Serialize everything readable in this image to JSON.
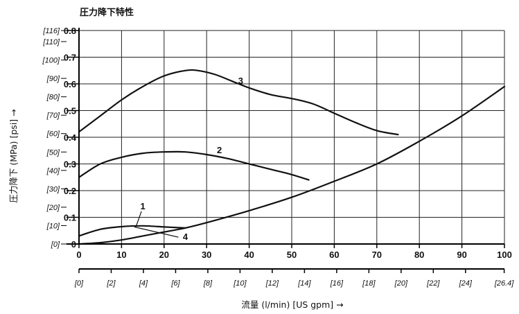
{
  "chart_data": {
    "type": "line",
    "title": "圧力降下特性",
    "xlabel": "流量 (l/min) [US gpm] →",
    "ylabel": "圧力降下 (MPa) [psi] →",
    "xlim": [
      0,
      100
    ],
    "ylim": [
      0,
      0.8
    ],
    "x_ticks": [
      "0",
      "10",
      "20",
      "30",
      "40",
      "50",
      "60",
      "70",
      "80",
      "90",
      "100"
    ],
    "y_ticks": [
      "0",
      "0.1",
      "0.2",
      "0.3",
      "0.4",
      "0.5",
      "0.6",
      "0.7",
      "0.8"
    ],
    "x2_ticks": [
      "[0]",
      "[2]",
      "[4]",
      "[6]",
      "[8]",
      "[10]",
      "[12]",
      "[14]",
      "[16]",
      "[18]",
      "[20]",
      "[22]",
      "[24]",
      "[26.4]"
    ],
    "y2_ticks": [
      "[0]",
      "[10]",
      "[20]",
      "[30]",
      "[40]",
      "[50]",
      "[60]",
      "[70]",
      "[80]",
      "[90]",
      "[100]",
      "[110]",
      "[116]"
    ],
    "grid": true,
    "series": [
      {
        "name": "1",
        "label_at": [
          15,
          0.13
        ],
        "x": [
          0,
          5,
          10,
          15,
          20,
          25
        ],
        "y": [
          0.03,
          0.055,
          0.065,
          0.068,
          0.064,
          0.06
        ]
      },
      {
        "name": "2",
        "label_at": [
          33,
          0.34
        ],
        "x": [
          0,
          5,
          10,
          15,
          20,
          25,
          30,
          35,
          40,
          45,
          50,
          54
        ],
        "y": [
          0.25,
          0.3,
          0.325,
          0.34,
          0.345,
          0.345,
          0.335,
          0.32,
          0.3,
          0.28,
          0.26,
          0.24
        ]
      },
      {
        "name": "3",
        "label_at": [
          38,
          0.6
        ],
        "x": [
          0,
          5,
          10,
          15,
          20,
          25,
          28,
          32,
          36,
          40,
          45,
          50,
          55,
          60,
          65,
          70,
          75
        ],
        "y": [
          0.42,
          0.48,
          0.54,
          0.59,
          0.63,
          0.65,
          0.65,
          0.635,
          0.61,
          0.585,
          0.56,
          0.545,
          0.525,
          0.49,
          0.455,
          0.425,
          0.41
        ]
      },
      {
        "name": "4",
        "label_at": [
          25,
          0.015
        ],
        "x": [
          0,
          5,
          10,
          15,
          20,
          25,
          30,
          40,
          50,
          60,
          70,
          80,
          90,
          100
        ],
        "y": [
          0,
          0.005,
          0.015,
          0.03,
          0.045,
          0.06,
          0.08,
          0.125,
          0.175,
          0.235,
          0.3,
          0.385,
          0.48,
          0.59
        ]
      }
    ]
  }
}
